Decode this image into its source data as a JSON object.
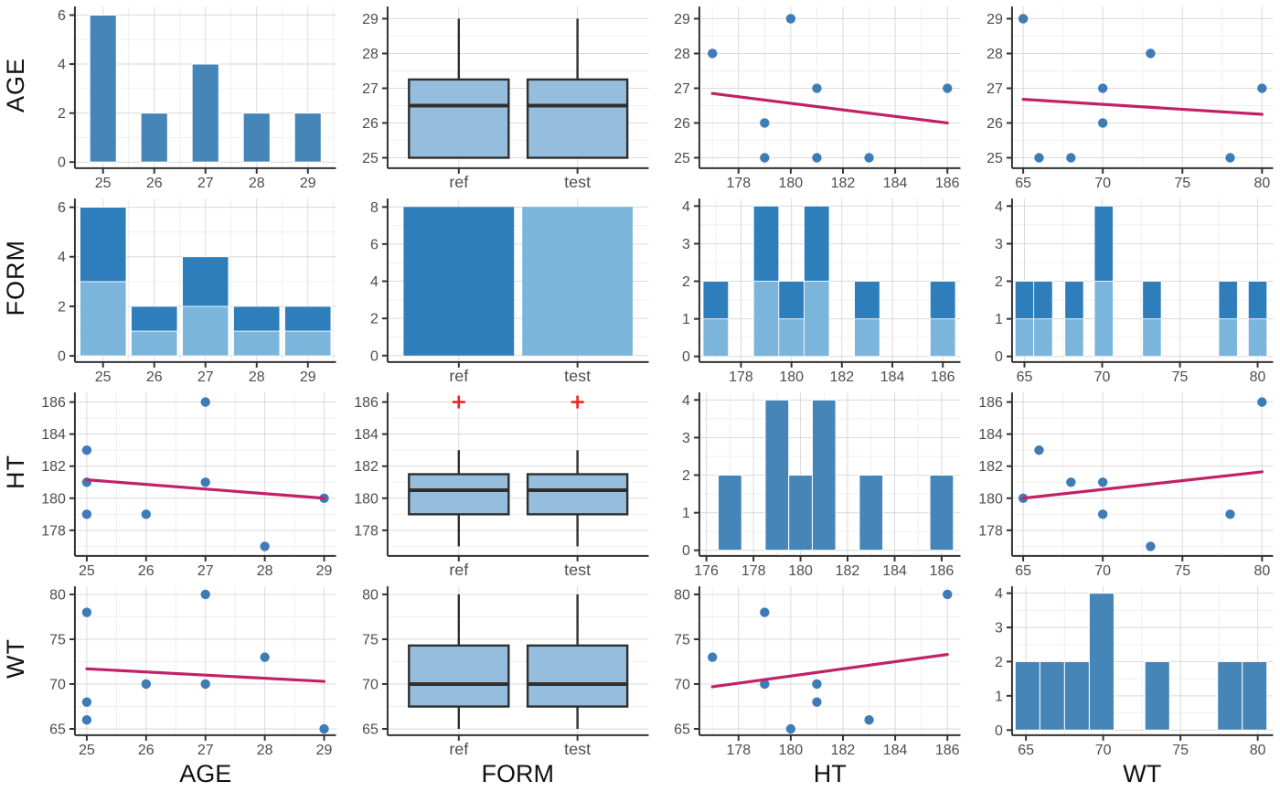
{
  "figure": {
    "kind": "scatterplot-matrix",
    "variables": [
      "AGE",
      "FORM",
      "HT",
      "WT"
    ],
    "row_labels": [
      "AGE",
      "FORM",
      "HT",
      "WT"
    ],
    "col_titles": [
      "AGE",
      "FORM",
      "HT",
      "WT"
    ],
    "form_levels": [
      "ref",
      "test"
    ],
    "colors": {
      "bg": "#FFFFFF",
      "grid_major": "#DADADA",
      "grid_minor": "#EFEFEF",
      "axis": "#333333",
      "tick_label": "#4D4D4D",
      "hist_fill": "#4685B7",
      "stack_dark": "#2E7EBC",
      "stack_light": "#7CB5DC",
      "box_fill": "#95BEDE",
      "box_stroke": "#2F2F2F",
      "point": "#3E7CB8",
      "trend": "#C22167",
      "outlier": "#EE2222"
    }
  },
  "chart_data": [
    {
      "id": "age-age",
      "row": "AGE",
      "col": "AGE",
      "type": "histogram",
      "x": {
        "min": 24.45,
        "max": 29.55,
        "ticks": [
          25,
          26,
          27,
          28,
          29
        ]
      },
      "y": {
        "min": -0.25,
        "max": 6.35,
        "ticks": [
          0,
          2,
          4,
          6
        ]
      },
      "bins": [
        [
          24.74,
          25.26,
          6
        ],
        [
          25.74,
          26.26,
          2
        ],
        [
          26.74,
          27.26,
          4
        ],
        [
          27.74,
          28.26,
          2
        ],
        [
          28.74,
          29.26,
          2
        ]
      ]
    },
    {
      "id": "age-form",
      "row": "AGE",
      "col": "FORM",
      "type": "boxplot",
      "x": {
        "cats": [
          "ref",
          "test"
        ]
      },
      "y": {
        "min": 24.7,
        "max": 29.35,
        "ticks": [
          25,
          26,
          27,
          28,
          29
        ]
      },
      "boxes": [
        {
          "cat": "ref",
          "low": 25,
          "q1": 25,
          "med": 26.5,
          "q3": 27.25,
          "high": 29,
          "outliers": []
        },
        {
          "cat": "test",
          "low": 25,
          "q1": 25,
          "med": 26.5,
          "q3": 27.25,
          "high": 29,
          "outliers": []
        }
      ]
    },
    {
      "id": "age-ht",
      "row": "AGE",
      "col": "HT",
      "type": "scatter",
      "x": {
        "min": 176.5,
        "max": 186.5,
        "ticks": [
          178,
          180,
          182,
          184,
          186
        ]
      },
      "y": {
        "min": 24.7,
        "max": 29.35,
        "ticks": [
          25,
          26,
          27,
          28,
          29
        ]
      },
      "points": [
        [
          177,
          28
        ],
        [
          179,
          26
        ],
        [
          179,
          25
        ],
        [
          180,
          29
        ],
        [
          181,
          27
        ],
        [
          181,
          25
        ],
        [
          183,
          25
        ],
        [
          186,
          27
        ]
      ],
      "trend": [
        [
          177,
          26.85
        ],
        [
          186,
          26.0
        ]
      ]
    },
    {
      "id": "age-wt",
      "row": "AGE",
      "col": "WT",
      "type": "scatter",
      "x": {
        "min": 64.3,
        "max": 80.7,
        "ticks": [
          65,
          70,
          75,
          80
        ]
      },
      "y": {
        "min": 24.7,
        "max": 29.35,
        "ticks": [
          25,
          26,
          27,
          28,
          29
        ]
      },
      "points": [
        [
          65,
          29
        ],
        [
          66,
          25
        ],
        [
          68,
          25
        ],
        [
          70,
          27
        ],
        [
          70,
          26
        ],
        [
          73,
          28
        ],
        [
          78,
          25
        ],
        [
          80,
          27
        ]
      ],
      "trend": [
        [
          65,
          26.68
        ],
        [
          80,
          26.25
        ]
      ]
    },
    {
      "id": "form-age",
      "row": "FORM",
      "col": "AGE",
      "type": "stackhist",
      "x": {
        "min": 24.45,
        "max": 29.55,
        "ticks": [
          25,
          26,
          27,
          28,
          29
        ]
      },
      "y": {
        "min": -0.25,
        "max": 6.35,
        "ticks": [
          0,
          2,
          4,
          6
        ]
      },
      "bins": [
        [
          24.55,
          25.45,
          3,
          3
        ],
        [
          25.55,
          26.45,
          1,
          1
        ],
        [
          26.55,
          27.45,
          2,
          2
        ],
        [
          27.55,
          28.45,
          1,
          1
        ],
        [
          28.55,
          29.45,
          1,
          1
        ]
      ]
    },
    {
      "id": "form-form",
      "row": "FORM",
      "col": "FORM",
      "type": "bar",
      "x": {
        "cats": [
          "ref",
          "test"
        ]
      },
      "y": {
        "min": -0.35,
        "max": 8.45,
        "ticks": [
          0,
          2,
          4,
          6,
          8
        ]
      },
      "bars": [
        {
          "cat": "ref",
          "value": 8,
          "shade": "dark"
        },
        {
          "cat": "test",
          "value": 8,
          "shade": "light"
        }
      ]
    },
    {
      "id": "form-ht",
      "row": "FORM",
      "col": "HT",
      "type": "stackhist",
      "x": {
        "min": 176.35,
        "max": 186.7,
        "ticks": [
          178,
          180,
          182,
          184,
          186
        ]
      },
      "y": {
        "min": -0.15,
        "max": 4.2,
        "ticks": [
          0,
          1,
          2,
          3,
          4
        ]
      },
      "bins": [
        [
          176.5,
          177.5,
          1,
          1
        ],
        [
          178.5,
          179.5,
          2,
          2
        ],
        [
          179.5,
          180.5,
          1,
          1
        ],
        [
          180.5,
          181.5,
          2,
          2
        ],
        [
          182.5,
          183.5,
          1,
          1
        ],
        [
          185.5,
          186.5,
          1,
          1
        ]
      ]
    },
    {
      "id": "form-wt",
      "row": "FORM",
      "col": "WT",
      "type": "stackhist",
      "x": {
        "min": 64.2,
        "max": 81.0,
        "ticks": [
          65,
          70,
          75,
          80
        ]
      },
      "y": {
        "min": -0.15,
        "max": 4.2,
        "ticks": [
          0,
          1,
          2,
          3,
          4
        ]
      },
      "bins": [
        [
          64.4,
          65.6,
          1,
          1
        ],
        [
          65.6,
          66.8,
          1,
          1
        ],
        [
          67.6,
          68.8,
          1,
          1
        ],
        [
          69.5,
          70.7,
          2,
          2
        ],
        [
          72.6,
          73.8,
          1,
          1
        ],
        [
          77.5,
          78.7,
          1,
          1
        ],
        [
          79.4,
          80.6,
          1,
          1
        ]
      ]
    },
    {
      "id": "ht-age",
      "row": "HT",
      "col": "AGE",
      "type": "scatter",
      "x": {
        "min": 24.8,
        "max": 29.2,
        "ticks": [
          25,
          26,
          27,
          28,
          29
        ]
      },
      "y": {
        "min": 176.4,
        "max": 186.6,
        "ticks": [
          178,
          180,
          182,
          184,
          186
        ]
      },
      "points": [
        [
          25,
          183
        ],
        [
          25,
          181
        ],
        [
          25,
          179
        ],
        [
          26,
          179
        ],
        [
          27,
          186
        ],
        [
          27,
          181
        ],
        [
          28,
          177
        ],
        [
          29,
          180
        ]
      ],
      "trend": [
        [
          25,
          181.15
        ],
        [
          29,
          180.0
        ]
      ]
    },
    {
      "id": "ht-form",
      "row": "HT",
      "col": "FORM",
      "type": "boxplot",
      "x": {
        "cats": [
          "ref",
          "test"
        ]
      },
      "y": {
        "min": 176.4,
        "max": 186.6,
        "ticks": [
          178,
          180,
          182,
          184,
          186
        ]
      },
      "boxes": [
        {
          "cat": "ref",
          "low": 177,
          "q1": 179,
          "med": 180.5,
          "q3": 181.5,
          "high": 183,
          "outliers": [
            186
          ]
        },
        {
          "cat": "test",
          "low": 177,
          "q1": 179,
          "med": 180.5,
          "q3": 181.5,
          "high": 183,
          "outliers": [
            186
          ]
        }
      ]
    },
    {
      "id": "ht-ht",
      "row": "HT",
      "col": "HT",
      "type": "histogram",
      "x": {
        "min": 175.7,
        "max": 186.8,
        "ticks": [
          176,
          178,
          180,
          182,
          184,
          186
        ]
      },
      "y": {
        "min": -0.15,
        "max": 4.2,
        "ticks": [
          0,
          1,
          2,
          3,
          4
        ]
      },
      "bins": [
        [
          176.5,
          177.5,
          2
        ],
        [
          178.5,
          179.5,
          4
        ],
        [
          179.5,
          180.5,
          2
        ],
        [
          180.5,
          181.5,
          4
        ],
        [
          182.5,
          183.5,
          2
        ],
        [
          185.5,
          186.5,
          2
        ]
      ]
    },
    {
      "id": "ht-wt",
      "row": "HT",
      "col": "WT",
      "type": "scatter",
      "x": {
        "min": 64.3,
        "max": 80.7,
        "ticks": [
          65,
          70,
          75,
          80
        ]
      },
      "y": {
        "min": 176.4,
        "max": 186.6,
        "ticks": [
          178,
          180,
          182,
          184,
          186
        ]
      },
      "points": [
        [
          65,
          180
        ],
        [
          66,
          183
        ],
        [
          68,
          181
        ],
        [
          70,
          181
        ],
        [
          70,
          179
        ],
        [
          73,
          177
        ],
        [
          78,
          179
        ],
        [
          80,
          186
        ]
      ],
      "trend": [
        [
          65,
          180.0
        ],
        [
          80,
          181.65
        ]
      ]
    },
    {
      "id": "wt-age",
      "row": "WT",
      "col": "AGE",
      "type": "scatter",
      "x": {
        "min": 24.8,
        "max": 29.2,
        "ticks": [
          25,
          26,
          27,
          28,
          29
        ]
      },
      "y": {
        "min": 64.3,
        "max": 80.9,
        "ticks": [
          65,
          70,
          75,
          80
        ]
      },
      "points": [
        [
          25,
          78
        ],
        [
          25,
          68
        ],
        [
          25,
          66
        ],
        [
          26,
          70
        ],
        [
          27,
          80
        ],
        [
          27,
          70
        ],
        [
          28,
          73
        ],
        [
          29,
          65
        ]
      ],
      "trend": [
        [
          25,
          71.7
        ],
        [
          29,
          70.3
        ]
      ]
    },
    {
      "id": "wt-form",
      "row": "WT",
      "col": "FORM",
      "type": "boxplot",
      "x": {
        "cats": [
          "ref",
          "test"
        ]
      },
      "y": {
        "min": 64.3,
        "max": 80.9,
        "ticks": [
          65,
          70,
          75,
          80
        ]
      },
      "boxes": [
        {
          "cat": "ref",
          "low": 65,
          "q1": 67.5,
          "med": 70,
          "q3": 74.3,
          "high": 80,
          "outliers": []
        },
        {
          "cat": "test",
          "low": 65,
          "q1": 67.5,
          "med": 70,
          "q3": 74.3,
          "high": 80,
          "outliers": []
        }
      ]
    },
    {
      "id": "wt-ht",
      "row": "WT",
      "col": "HT",
      "type": "scatter",
      "x": {
        "min": 176.5,
        "max": 186.5,
        "ticks": [
          178,
          180,
          182,
          184,
          186
        ]
      },
      "y": {
        "min": 64.3,
        "max": 80.9,
        "ticks": [
          65,
          70,
          75,
          80
        ]
      },
      "points": [
        [
          177,
          73
        ],
        [
          179,
          78
        ],
        [
          179,
          70
        ],
        [
          180,
          65
        ],
        [
          181,
          70
        ],
        [
          181,
          68
        ],
        [
          183,
          66
        ],
        [
          186,
          80
        ]
      ],
      "trend": [
        [
          177,
          69.7
        ],
        [
          186,
          73.3
        ]
      ]
    },
    {
      "id": "wt-wt",
      "row": "WT",
      "col": "WT",
      "type": "histogram",
      "x": {
        "min": 64.1,
        "max": 81.0,
        "ticks": [
          65,
          70,
          75,
          80
        ]
      },
      "y": {
        "min": -0.15,
        "max": 4.2,
        "ticks": [
          0,
          1,
          2,
          3,
          4
        ]
      },
      "bins": [
        [
          64.3,
          65.9,
          2
        ],
        [
          65.9,
          67.5,
          2
        ],
        [
          67.5,
          69.1,
          2
        ],
        [
          69.1,
          70.7,
          4
        ],
        [
          72.7,
          74.3,
          2
        ],
        [
          77.4,
          79.0,
          2
        ],
        [
          79.0,
          80.6,
          2
        ]
      ]
    }
  ]
}
